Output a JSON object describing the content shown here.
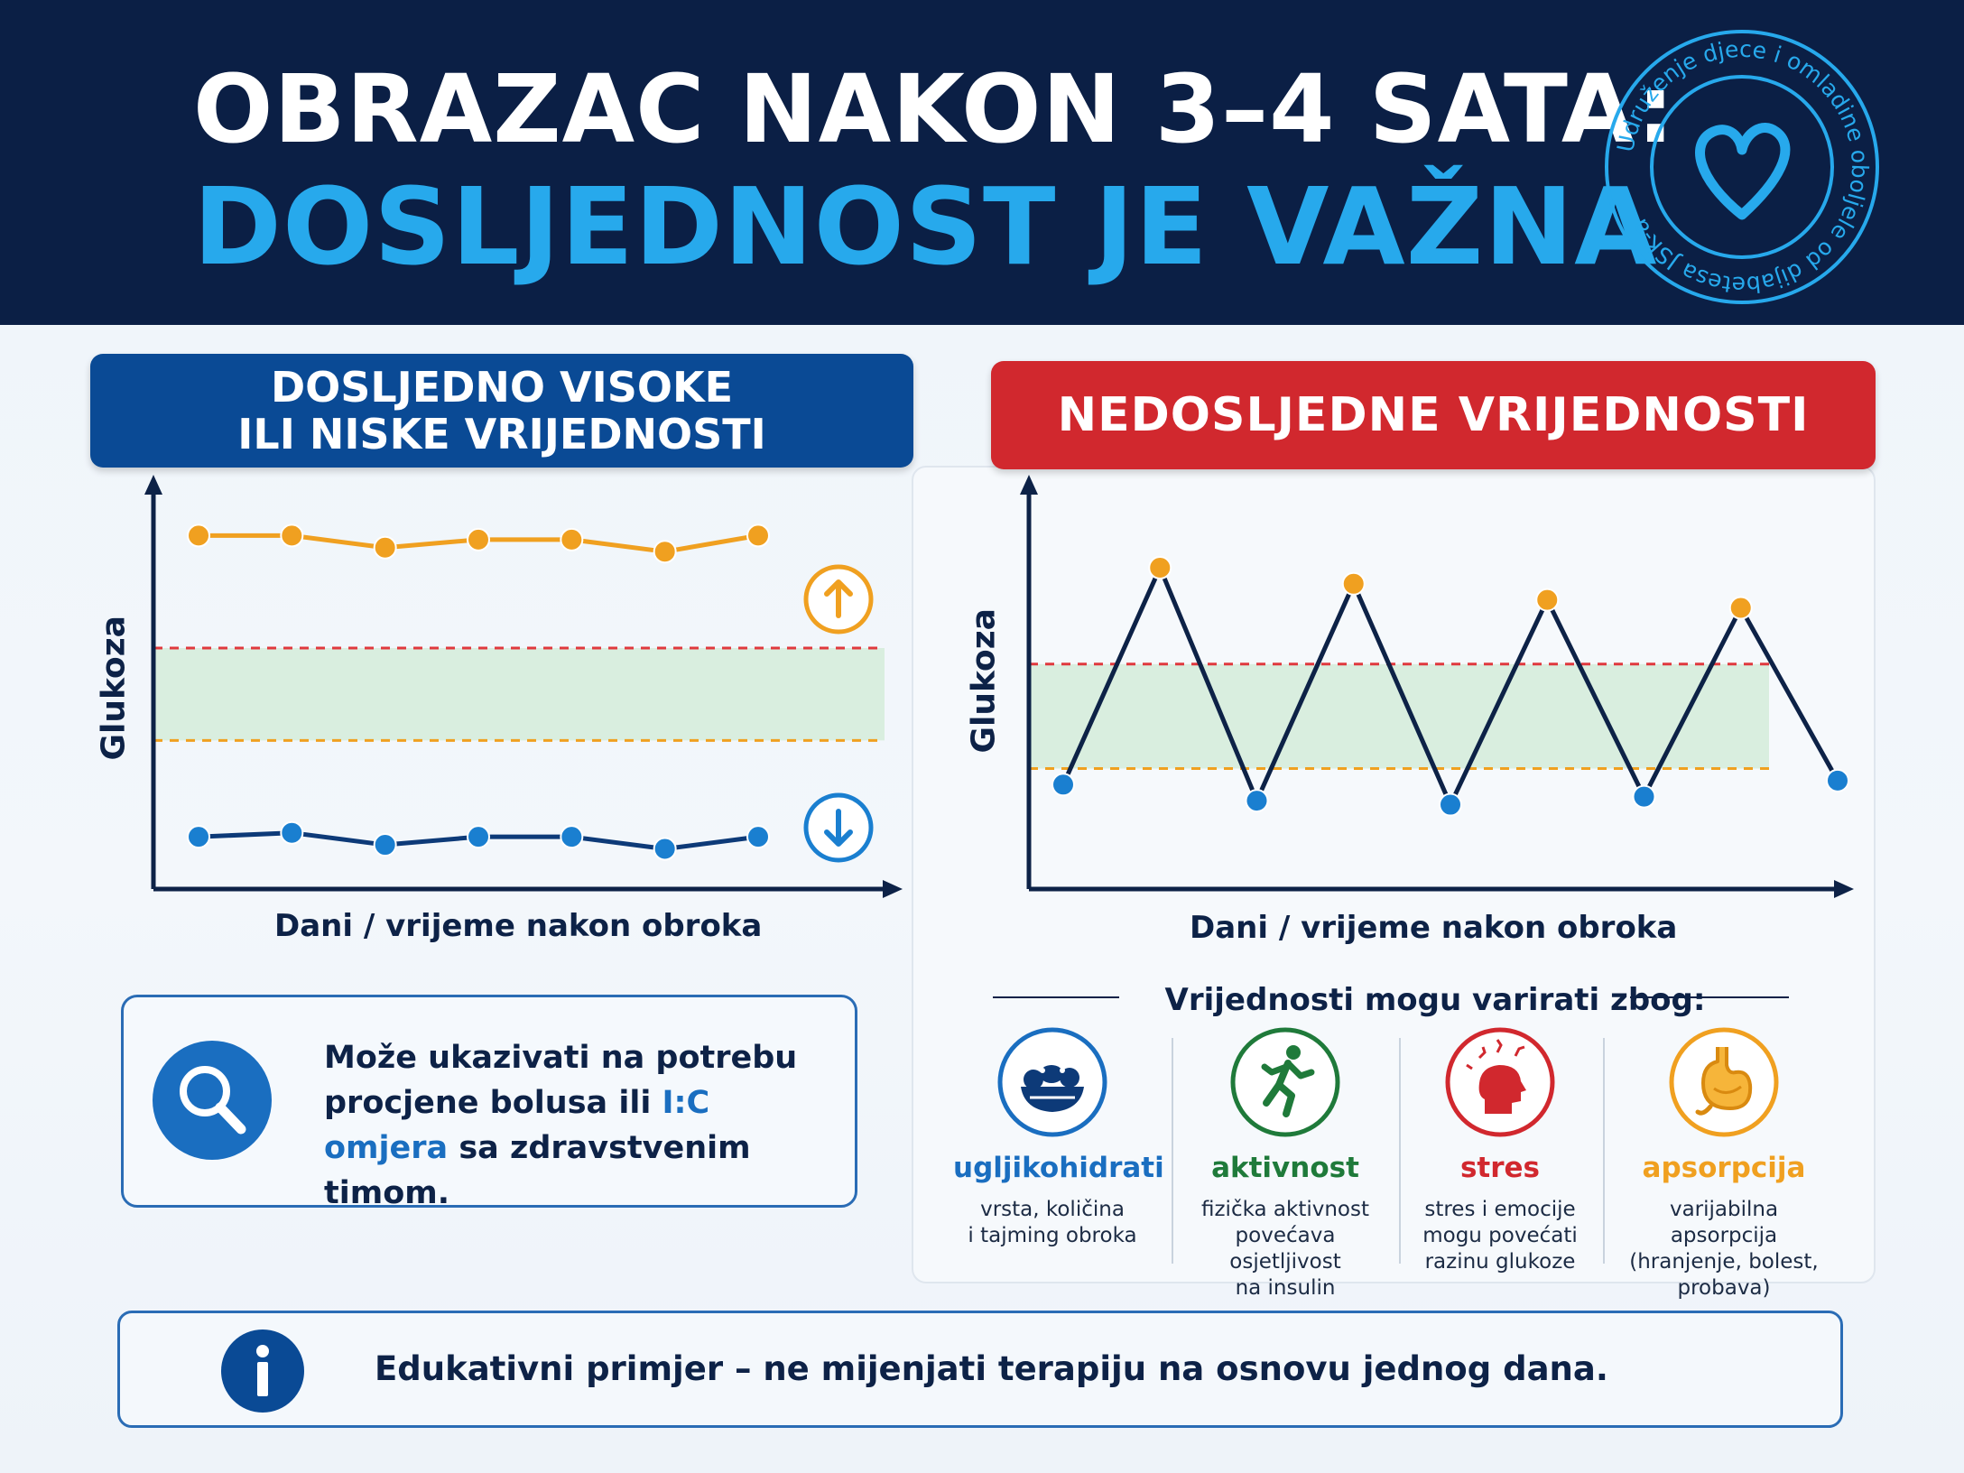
{
  "header": {
    "title_line1": "OBRAZAC NAKON 3–4 SATA:",
    "title_line2": "DOSLJEDNOST JE VAŽNA",
    "logo_text": "Udruženje djece i omladine oboljele od dijabetesa JSK-a"
  },
  "left_panel": {
    "title_line1": "DOSLJEDNO VISOKE",
    "title_line2": "ILI NISKE VRIJEDNOSTI",
    "ylabel": "Glukoza",
    "xlabel": "Dani / vrijeme nakon obroka",
    "note_part1": "Može ukazivati na potrebu procjene bolusa ili ",
    "note_highlight": "I:C omjera",
    "note_part2": " sa zdravstvenim timom."
  },
  "right_panel": {
    "title": "NEDOSLJEDNE VRIJEDNOSTI",
    "ylabel": "Glukoza",
    "xlabel": "Dani / vrijeme nakon obroka",
    "variation_title": "Vrijednosti mogu varirati zbog:",
    "factors": [
      {
        "name": "ugljikohidrati",
        "desc": [
          "vrsta, količina",
          "i tajming obroka"
        ],
        "icon": "food-bowl-icon",
        "color": "#1a6ec0"
      },
      {
        "name": "aktivnost",
        "desc": [
          "fizička aktivnost",
          "povećava osjetljivost",
          "na insulin"
        ],
        "icon": "running-person-icon",
        "color": "#1f7a3a"
      },
      {
        "name": "stres",
        "desc": [
          "stres i emocije",
          "mogu povećati",
          "razinu glukoze"
        ],
        "icon": "stressed-head-icon",
        "color": "#d1282e"
      },
      {
        "name": "apsorpcija",
        "desc": [
          "varijabilna apsorpcija",
          "(hranjenje, bolest,",
          "probava)"
        ],
        "icon": "stomach-icon",
        "color": "#f0a020"
      }
    ]
  },
  "footer": {
    "text": "Edukativni primjer – ne mijenjati terapiju na osnovu jednog dana."
  },
  "colors": {
    "navy": "#0b1f45",
    "accent_blue": "#27a9ec",
    "high": "#f0a020",
    "low": "#1a7fd0",
    "target_band": "#d9eedf",
    "upper_limit": "#e0393e",
    "lower_limit": "#f0a020"
  },
  "chart_data": [
    {
      "type": "line",
      "series": [
        {
          "values": [
            0.88,
            0.88,
            0.85,
            0.87,
            0.87,
            0.84,
            0.88
          ]
        },
        {
          "values": [
            0.13,
            0.14,
            0.11,
            0.13,
            0.13,
            0.1,
            0.13
          ]
        }
      ],
      "target_range": [
        0.37,
        0.6
      ],
      "ylabel": "Glukoza",
      "xlabel": "Dani / vrijeme nakon obroka",
      "ylim": [
        0,
        1
      ]
    },
    {
      "type": "line",
      "series": [
        {
          "values": [
            0.26,
            0.8,
            0.22,
            0.76,
            0.21,
            0.72,
            0.23,
            0.7,
            0.27
          ]
        }
      ],
      "target_range": [
        0.3,
        0.56
      ],
      "ylabel": "Glukoza",
      "xlabel": "Dani / vrijeme nakon obroka",
      "ylim": [
        0,
        1
      ]
    }
  ]
}
